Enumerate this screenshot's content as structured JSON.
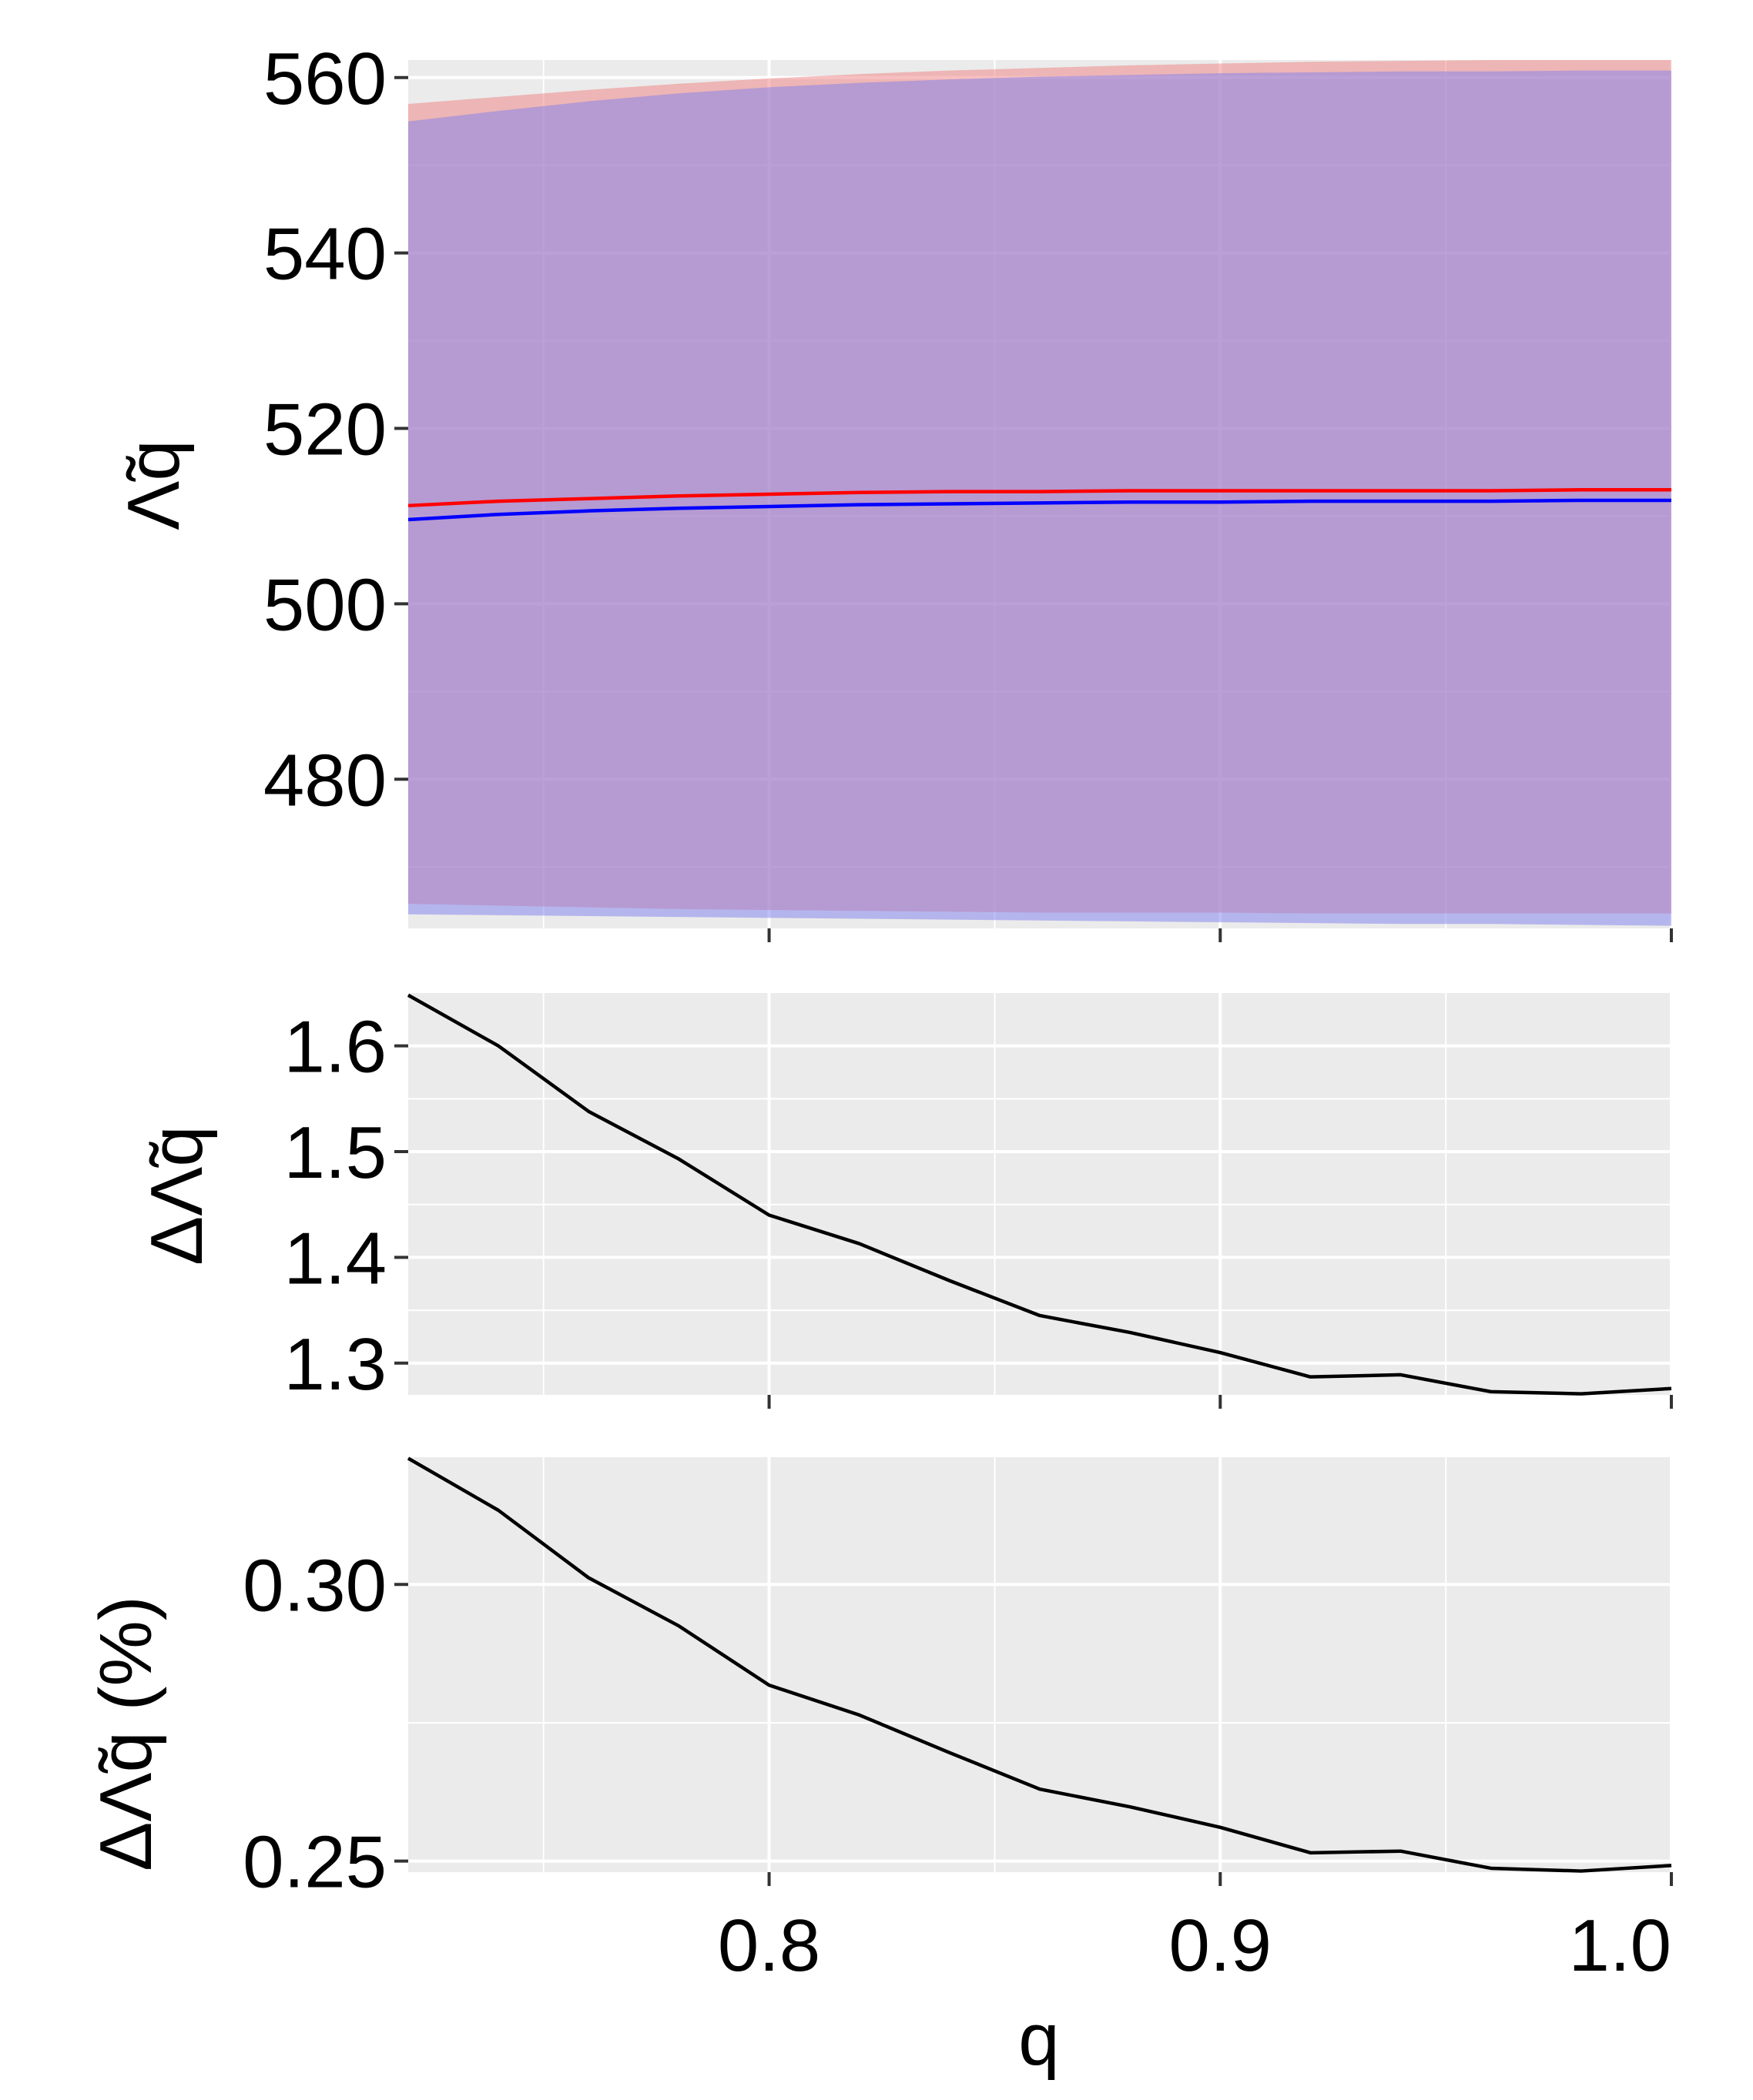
{
  "colors": {
    "panel_bg": "#EBEBEB",
    "grid": "#FFFFFF",
    "red": "#FF0000",
    "blue": "#0000FF",
    "red_band": "#F08080",
    "blue_band": "#8080F0",
    "black": "#000000"
  },
  "chart_data": [
    {
      "type": "line",
      "panel": "top",
      "ylabel": "Λ̃q",
      "xlim": [
        0.72,
        1.0
      ],
      "ylim": [
        463,
        562
      ],
      "yticks": [
        480,
        500,
        520,
        540,
        560
      ],
      "ytick_labels": [
        "480",
        "500",
        "520",
        "540",
        "560"
      ],
      "x": [
        0.72,
        0.74,
        0.76,
        0.78,
        0.8,
        0.82,
        0.84,
        0.86,
        0.88,
        0.9,
        0.92,
        0.94,
        0.96,
        0.98,
        1.0
      ],
      "series": [
        {
          "color": "red",
          "values": [
            511.2,
            511.7,
            512.0,
            512.3,
            512.5,
            512.7,
            512.8,
            512.8,
            512.9,
            512.9,
            512.9,
            512.9,
            512.9,
            513.0,
            513.0
          ],
          "band_upper": [
            557.0,
            557.8,
            558.6,
            559.3,
            559.9,
            560.4,
            560.8,
            561.1,
            561.4,
            561.6,
            561.8,
            561.9,
            562.0,
            562.0,
            562.0
          ],
          "band_lower": [
            465.8,
            465.6,
            465.4,
            465.2,
            465.1,
            465.0,
            464.9,
            464.8,
            464.8,
            464.8,
            464.7,
            464.7,
            464.7,
            464.7,
            464.7
          ]
        },
        {
          "color": "blue",
          "values": [
            509.6,
            510.2,
            510.6,
            510.9,
            511.1,
            511.3,
            511.4,
            511.5,
            511.6,
            511.6,
            511.7,
            511.7,
            511.7,
            511.8,
            511.8
          ],
          "band_upper": [
            555.0,
            556.2,
            557.3,
            558.2,
            558.9,
            559.4,
            559.8,
            560.1,
            560.3,
            560.5,
            560.6,
            560.7,
            560.7,
            560.8,
            560.8
          ],
          "band_lower": [
            464.6,
            464.5,
            464.4,
            464.3,
            464.2,
            464.1,
            464.0,
            463.9,
            463.8,
            463.7,
            463.6,
            463.5,
            463.5,
            463.4,
            463.3
          ]
        }
      ]
    },
    {
      "type": "line",
      "panel": "middle",
      "ylabel": "ΔΛ̃q",
      "xlim": [
        0.72,
        1.0
      ],
      "ylim": [
        1.27,
        1.65
      ],
      "yticks": [
        1.3,
        1.4,
        1.5,
        1.6
      ],
      "ytick_labels": [
        "1.3",
        "1.4",
        "1.5",
        "1.6"
      ],
      "x": [
        0.72,
        0.74,
        0.76,
        0.78,
        0.8,
        0.82,
        0.84,
        0.86,
        0.88,
        0.9,
        0.92,
        0.94,
        0.96,
        0.98,
        1.0
      ],
      "series": [
        {
          "color": "black",
          "values": [
            1.648,
            1.6,
            1.538,
            1.493,
            1.44,
            1.413,
            1.378,
            1.345,
            1.329,
            1.31,
            1.287,
            1.289,
            1.273,
            1.271,
            1.276
          ]
        }
      ]
    },
    {
      "type": "line",
      "panel": "bottom",
      "ylabel": "ΔΛ̃q (%)",
      "xlabel": "q",
      "xlim": [
        0.72,
        1.0
      ],
      "ylim": [
        0.248,
        0.323
      ],
      "yticks": [
        0.25,
        0.3
      ],
      "ytick_labels": [
        "0.25",
        "0.30"
      ],
      "xticks": [
        0.8,
        0.9,
        1.0
      ],
      "xtick_labels": [
        "0.8",
        "0.9",
        "1.0"
      ],
      "x": [
        0.72,
        0.74,
        0.76,
        0.78,
        0.8,
        0.82,
        0.84,
        0.86,
        0.88,
        0.9,
        0.92,
        0.94,
        0.96,
        0.98,
        1.0
      ],
      "series": [
        {
          "color": "black",
          "values": [
            0.3228,
            0.3134,
            0.3012,
            0.2925,
            0.2818,
            0.2764,
            0.2696,
            0.263,
            0.2598,
            0.2561,
            0.2515,
            0.2518,
            0.2487,
            0.2482,
            0.2492
          ]
        }
      ]
    }
  ]
}
